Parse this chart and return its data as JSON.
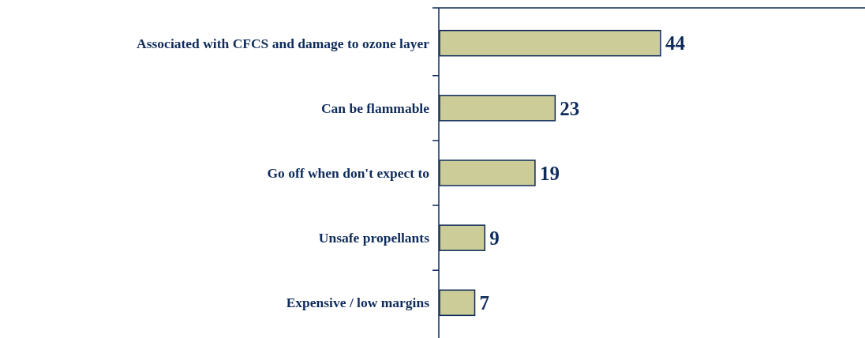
{
  "chart_data": {
    "type": "bar",
    "orientation": "horizontal",
    "categories": [
      "Associated with CFCS and damage to ozone layer",
      "Can be flammable",
      "Go off when don't expect to",
      "Unsafe propellants",
      "Expensive / low margins"
    ],
    "values": [
      44,
      23,
      19,
      9,
      7
    ],
    "color": "#cccc99",
    "data_labels": true
  }
}
